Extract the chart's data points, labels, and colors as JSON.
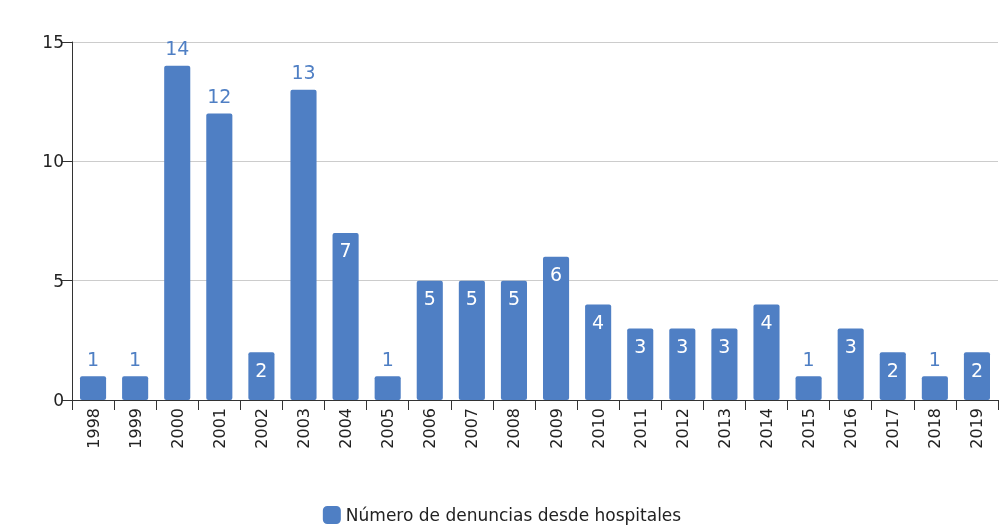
{
  "chart_data": {
    "type": "bar",
    "categories": [
      "1998",
      "1999",
      "2000",
      "2001",
      "2002",
      "2003",
      "2004",
      "2005",
      "2006",
      "2007",
      "2008",
      "2009",
      "2010",
      "2011",
      "2012",
      "2013",
      "2014",
      "2015",
      "2016",
      "2017",
      "2018",
      "2019"
    ],
    "series": [
      {
        "name": "Número de denuncias desde hospitales",
        "color": "#4f7fc4",
        "values": [
          1,
          1,
          14,
          12,
          2,
          13,
          7,
          1,
          5,
          5,
          5,
          6,
          4,
          3,
          3,
          3,
          4,
          1,
          3,
          2,
          1,
          2
        ]
      }
    ],
    "ylim": [
      0,
      15
    ],
    "yticks": [
      0,
      5,
      10,
      15
    ],
    "grid": "y",
    "legend": "bottom",
    "data_labels": true
  }
}
